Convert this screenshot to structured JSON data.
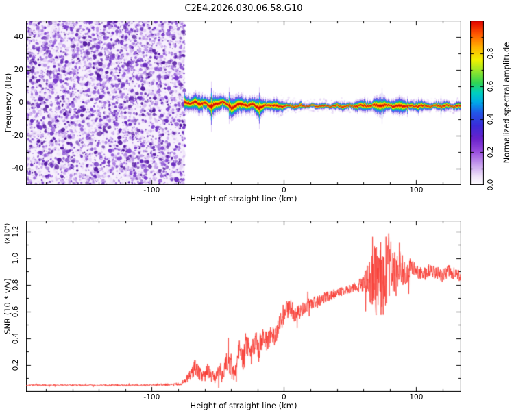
{
  "title": "C2E4.2026.030.06.58.G10",
  "chart_data": [
    {
      "type": "heatmap",
      "role": "spectrogram",
      "xlabel": "Height of straight line (km)",
      "ylabel": "Frequency (Hz)",
      "xlim": [
        -195,
        134
      ],
      "ylim": [
        -50,
        50
      ],
      "xticks": [
        -100,
        0,
        100
      ],
      "yticks": [
        -40,
        -20,
        0,
        20,
        40
      ],
      "x_minor_step": 20,
      "y_minor_step": 10,
      "noise_region": {
        "x_min": -195,
        "x_max": -75,
        "description": "dense purple speckle noise, no coherent signal below straight-line height of about -75 km"
      },
      "signal_track": {
        "description": "narrow high-amplitude spectral ridge near 0 Hz for x > -75 km; wavy between -75 and 0 km, then flat near -2 Hz out to the right edge",
        "points": [
          [
            -75,
            0.5,
            2.6,
            1.0
          ],
          [
            -71,
            -1.0,
            2.2,
            0.95
          ],
          [
            -67,
            1.0,
            2.1,
            0.9
          ],
          [
            -63,
            -1.5,
            2.5,
            1.0
          ],
          [
            -59,
            0.0,
            2.1,
            0.9
          ],
          [
            -55,
            -2.5,
            2.7,
            1.0
          ],
          [
            -51,
            -1.0,
            2.2,
            0.9
          ],
          [
            -47,
            0.8,
            2.0,
            0.85
          ],
          [
            -43,
            -1.2,
            2.6,
            1.0
          ],
          [
            -39,
            -3.0,
            2.4,
            0.95
          ],
          [
            -35,
            -1.5,
            2.0,
            0.9
          ],
          [
            -31,
            -0.5,
            2.5,
            1.0
          ],
          [
            -27,
            -2.0,
            2.2,
            0.95
          ],
          [
            -23,
            -1.0,
            2.0,
            0.9
          ],
          [
            -19,
            -3.0,
            2.4,
            0.95
          ],
          [
            -15,
            -2.0,
            2.0,
            0.9
          ],
          [
            -11,
            -1.0,
            1.8,
            0.85
          ],
          [
            -7,
            -2.2,
            1.8,
            0.9
          ],
          [
            -3,
            -2.0,
            1.6,
            0.85
          ],
          [
            2,
            -2.0,
            1.2,
            0.8
          ],
          [
            10,
            -2.0,
            1.0,
            0.75
          ],
          [
            25,
            -2.0,
            0.9,
            0.7
          ],
          [
            40,
            -2.0,
            1.1,
            0.8
          ],
          [
            55,
            -2.0,
            1.4,
            0.85
          ],
          [
            65,
            -1.8,
            1.8,
            0.9
          ],
          [
            75,
            -1.5,
            2.0,
            0.95
          ],
          [
            85,
            -2.0,
            2.0,
            0.9
          ],
          [
            95,
            -2.0,
            1.7,
            0.85
          ],
          [
            105,
            -2.0,
            1.4,
            0.8
          ],
          [
            115,
            -2.0,
            1.3,
            0.8
          ],
          [
            125,
            -2.0,
            1.4,
            0.8
          ],
          [
            134,
            -2.0,
            1.4,
            0.8
          ]
        ]
      },
      "noise_palette": [
        "#f0e6fa",
        "#e3d0f6",
        "#d2b6f0",
        "#bd97e9",
        "#a877e1",
        "#9158d8",
        "#7a3bcd",
        "#6426bb",
        "#53189f"
      ],
      "band_layers": [
        [
          2.6,
          "rgba(178,138,232,0.38)"
        ],
        [
          1.9,
          "rgba(84,58,228,0.80)"
        ],
        [
          1.4,
          "rgba(0,160,240,0.95)"
        ],
        [
          1.05,
          "rgba(40,205,70,1)"
        ],
        [
          0.72,
          "rgba(248,238,0,1)"
        ],
        [
          0.46,
          "rgba(255,148,0,1)"
        ],
        [
          0.24,
          "rgba(214,10,10,1)"
        ]
      ],
      "colorbar": {
        "label": "Normalized spectral amplitude",
        "range": [
          0,
          1
        ],
        "ticks": [
          "0.0",
          "0.2",
          "0.4",
          "0.6",
          "0.8"
        ],
        "minor_step": 0.1,
        "stops": [
          [
            0.0,
            "#ffffff"
          ],
          [
            0.05,
            "#f0e4fa"
          ],
          [
            0.12,
            "#c9a2ee"
          ],
          [
            0.2,
            "#9a4fe0"
          ],
          [
            0.28,
            "#6a22cc"
          ],
          [
            0.36,
            "#3b2bd8"
          ],
          [
            0.44,
            "#2257e8"
          ],
          [
            0.5,
            "#00a8e8"
          ],
          [
            0.56,
            "#00cfc0"
          ],
          [
            0.62,
            "#2fd455"
          ],
          [
            0.7,
            "#9fe826"
          ],
          [
            0.76,
            "#f2f200"
          ],
          [
            0.84,
            "#ffb000"
          ],
          [
            0.92,
            "#ff5500"
          ],
          [
            1.0,
            "#e00000"
          ]
        ]
      }
    },
    {
      "type": "line",
      "xlabel": "Height of straight line (km)",
      "ylabel": "SNR (10 * v/v)",
      "y_scale_note": "(x10⁴)",
      "xlim": [
        -195,
        134
      ],
      "ylim": [
        0,
        1.28
      ],
      "xticks": [
        -100,
        0,
        100
      ],
      "yticks": [
        "0.2",
        "0.4",
        "0.6",
        "0.8",
        "1.0",
        "1.2"
      ],
      "x_minor_step": 20,
      "y_minor_step": 0.1,
      "line_color": "#f83a31",
      "series": [
        {
          "name": "SNR",
          "points_format": "[height_km, snr_x10^4, noise_amplitude]",
          "points": [
            [
              -195,
              0.05,
              0.006
            ],
            [
              -160,
              0.05,
              0.006
            ],
            [
              -130,
              0.05,
              0.007
            ],
            [
              -105,
              0.05,
              0.007
            ],
            [
              -85,
              0.055,
              0.009
            ],
            [
              -78,
              0.06,
              0.012
            ],
            [
              -74,
              0.09,
              0.025
            ],
            [
              -70,
              0.13,
              0.05
            ],
            [
              -67,
              0.18,
              0.07
            ],
            [
              -64,
              0.14,
              0.05
            ],
            [
              -61,
              0.1,
              0.04
            ],
            [
              -58,
              0.16,
              0.06
            ],
            [
              -55,
              0.12,
              0.05
            ],
            [
              -52,
              0.1,
              0.04
            ],
            [
              -49,
              0.15,
              0.06
            ],
            [
              -46,
              0.11,
              0.05
            ],
            [
              -43,
              0.26,
              0.1
            ],
            [
              -40,
              0.18,
              0.08
            ],
            [
              -37,
              0.13,
              0.06
            ],
            [
              -34,
              0.3,
              0.11
            ],
            [
              -31,
              0.22,
              0.1
            ],
            [
              -28,
              0.35,
              0.1
            ],
            [
              -25,
              0.28,
              0.1
            ],
            [
              -22,
              0.38,
              0.09
            ],
            [
              -19,
              0.31,
              0.1
            ],
            [
              -16,
              0.42,
              0.08
            ],
            [
              -13,
              0.36,
              0.09
            ],
            [
              -10,
              0.45,
              0.08
            ],
            [
              -7,
              0.41,
              0.08
            ],
            [
              -4,
              0.5,
              0.07
            ],
            [
              0,
              0.55,
              0.07
            ],
            [
              4,
              0.66,
              0.08
            ],
            [
              8,
              0.58,
              0.06
            ],
            [
              12,
              0.6,
              0.055
            ],
            [
              16,
              0.63,
              0.05
            ],
            [
              20,
              0.66,
              0.05
            ],
            [
              25,
              0.68,
              0.045
            ],
            [
              30,
              0.7,
              0.04
            ],
            [
              35,
              0.72,
              0.04
            ],
            [
              40,
              0.74,
              0.035
            ],
            [
              45,
              0.75,
              0.035
            ],
            [
              50,
              0.77,
              0.03
            ],
            [
              55,
              0.79,
              0.04
            ],
            [
              60,
              0.8,
              0.07
            ],
            [
              64,
              0.83,
              0.16
            ],
            [
              68,
              0.86,
              0.24
            ],
            [
              72,
              0.8,
              0.3
            ],
            [
              76,
              0.9,
              0.3
            ],
            [
              80,
              0.95,
              0.24
            ],
            [
              84,
              0.86,
              0.18
            ],
            [
              88,
              0.92,
              0.13
            ],
            [
              92,
              0.88,
              0.1
            ],
            [
              96,
              0.93,
              0.07
            ],
            [
              100,
              0.9,
              0.05
            ],
            [
              105,
              0.87,
              0.05
            ],
            [
              110,
              0.91,
              0.05
            ],
            [
              115,
              0.89,
              0.05
            ],
            [
              120,
              0.87,
              0.05
            ],
            [
              125,
              0.9,
              0.05
            ],
            [
              134,
              0.86,
              0.04
            ]
          ]
        }
      ]
    }
  ]
}
